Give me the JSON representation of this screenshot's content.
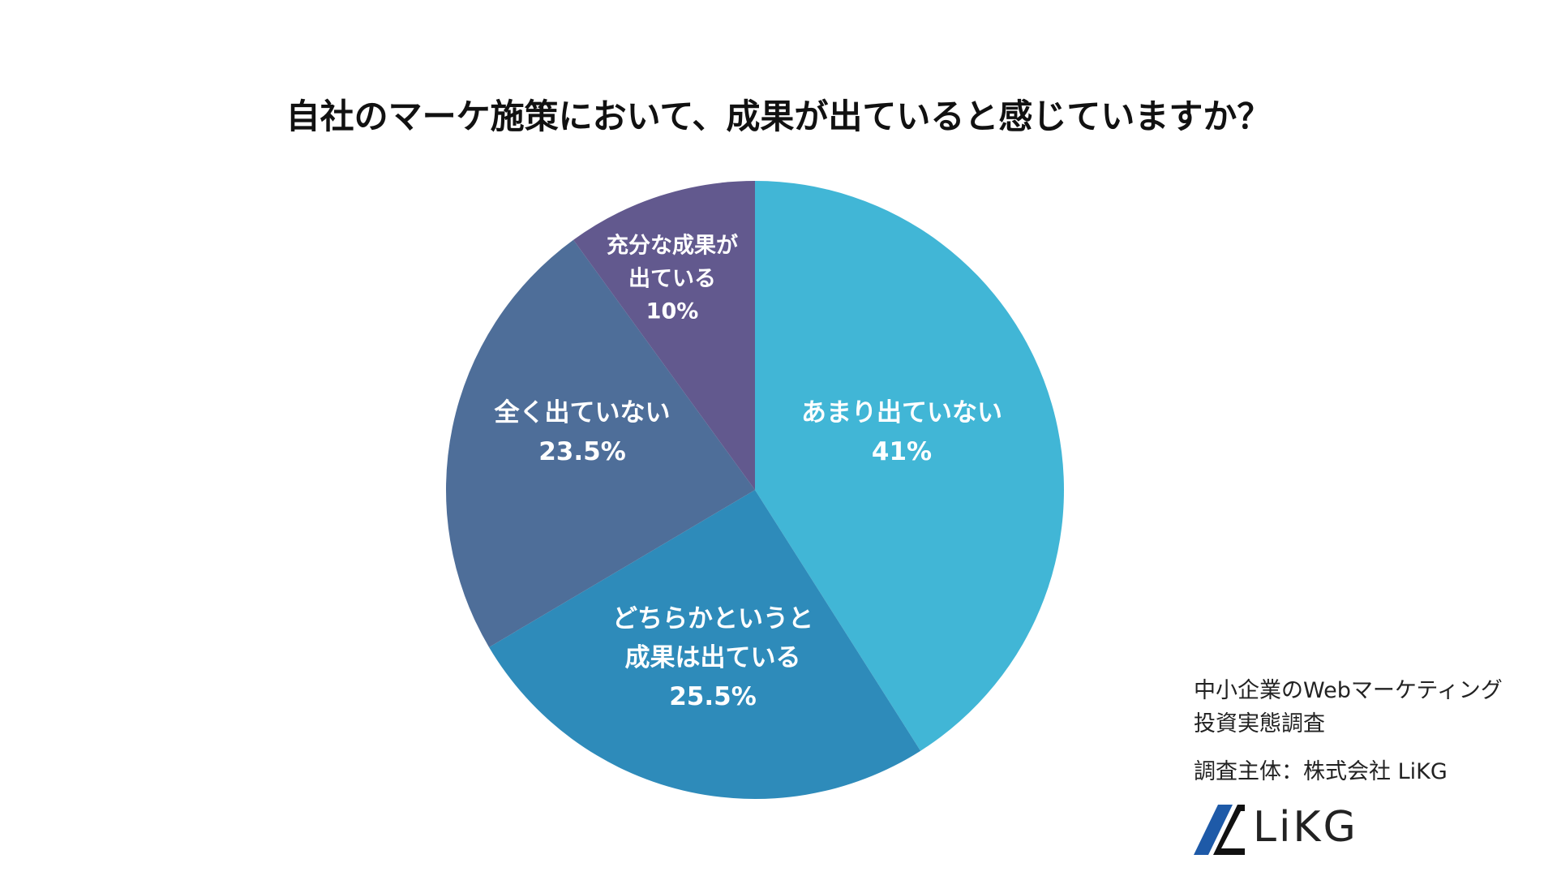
{
  "chart_data": {
    "type": "pie",
    "title": "自社のマーケ施策において、成果が出ていると感じていますか？",
    "categories": [
      "あまり出ていない",
      "どちらかというと\n成果は出ている",
      "全く出ていない",
      "充分な成果が\n出ている"
    ],
    "values": [
      41,
      25.5,
      23.5,
      10
    ],
    "value_labels": [
      "41%",
      "25.5%",
      "23.5%",
      "10%"
    ],
    "colors": [
      "#41b6d6",
      "#2e8bba",
      "#4e6e99",
      "#62598e"
    ]
  },
  "source": {
    "survey": "中小企業のWebマーケティング\n投資実態調査",
    "organizer": "調査主体：株式会社 LiKG",
    "logo": "LiKG"
  }
}
